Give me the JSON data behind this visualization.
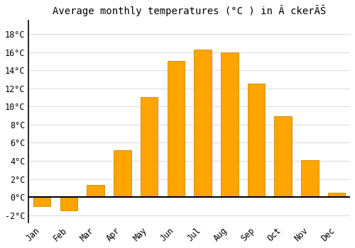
{
  "title": "Average monthly temperatures (°C ) in Ã ckerÃŠ",
  "months": [
    "Jan",
    "Feb",
    "Mar",
    "Apr",
    "May",
    "Jun",
    "Jul",
    "Aug",
    "Sep",
    "Oct",
    "Nov",
    "Dec"
  ],
  "values": [
    -1.0,
    -1.5,
    1.3,
    5.2,
    11.0,
    15.0,
    16.3,
    16.0,
    12.5,
    8.9,
    4.1,
    0.5
  ],
  "bar_color": "#FFA500",
  "bar_edge_color": "#CC8800",
  "background_color": "#ffffff",
  "grid_color": "#dddddd",
  "ylim": [
    -2.8,
    19.5
  ],
  "yticks": [
    -2,
    0,
    2,
    4,
    6,
    8,
    10,
    12,
    14,
    16,
    18
  ],
  "title_fontsize": 10,
  "tick_fontsize": 8.5,
  "font_family": "monospace",
  "bar_width": 0.65,
  "figsize": [
    5.0,
    3.5
  ],
  "dpi": 100
}
